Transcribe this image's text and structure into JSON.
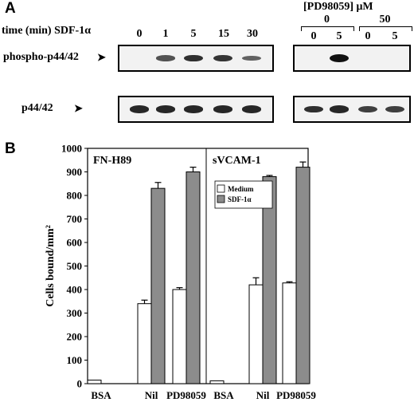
{
  "panel_a": {
    "letter": "A",
    "time_label": "time (min) SDF-1α",
    "times": [
      "0",
      "1",
      "5",
      "15",
      "30"
    ],
    "inhibitor_label": "[PD98059] μM",
    "inhibitor_groups": [
      "0",
      "50"
    ],
    "inhibitor_times": [
      "0",
      "5",
      "0",
      "5"
    ],
    "row_phospho": "phospho-p44/42",
    "row_total": "p44/42",
    "arrow": "➤",
    "phospho_intensity": [
      0,
      0.55,
      0.8,
      0.75,
      0.45
    ],
    "phospho_intensity_right": [
      0,
      1,
      0,
      0
    ],
    "total_intensity": [
      0.85,
      0.85,
      0.85,
      0.85,
      0.85
    ],
    "total_intensity_right": [
      0.8,
      0.85,
      0.7,
      0.7
    ]
  },
  "panel_b": {
    "letter": "B"
  },
  "chart_data": {
    "type": "bar",
    "ylabel": "Cells bound/mm²",
    "ylim": [
      0,
      1000
    ],
    "yticks": [
      0,
      100,
      200,
      300,
      400,
      500,
      600,
      700,
      800,
      900,
      1000
    ],
    "legend_position": "inside-right-panel-top-left",
    "colors": {
      "Medium": "#ffffff",
      "SDF-1α": "#8c8c8c"
    },
    "panels": [
      {
        "title": "FN-H89",
        "categories": [
          "BSA",
          "Nil",
          "PD98059"
        ],
        "series": [
          {
            "name": "Medium",
            "values": [
              15,
              340,
              400
            ],
            "errors": [
              0,
              15,
              8
            ]
          },
          {
            "name": "SDF-1α",
            "values": [
              null,
              830,
              900
            ],
            "errors": [
              0,
              25,
              20
            ]
          }
        ]
      },
      {
        "title": "sVCAM-1",
        "categories": [
          "BSA",
          "Nil",
          "PD98059"
        ],
        "series": [
          {
            "name": "Medium",
            "values": [
              12,
              420,
              428
            ],
            "errors": [
              0,
              30,
              5
            ]
          },
          {
            "name": "SDF-1α",
            "values": [
              null,
              880,
              920
            ],
            "errors": [
              0,
              5,
              22
            ]
          }
        ]
      }
    ]
  }
}
